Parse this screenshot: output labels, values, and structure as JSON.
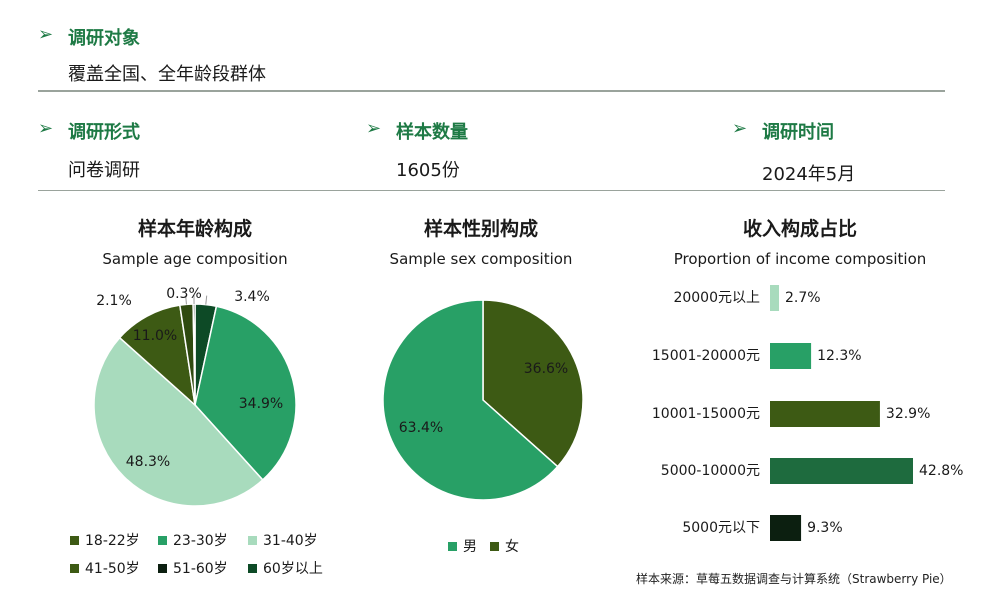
{
  "header": {
    "object_title": "调研对象",
    "object_value": "覆盖全国、全年龄段群体",
    "form_title": "调研形式",
    "form_value": "问卷调研",
    "sample_title": "样本数量",
    "sample_value": "1605份",
    "time_title": "调研时间",
    "time_value": "2024年5月",
    "arrow_glyph": "➢"
  },
  "colors": {
    "accent": "#1e7a45",
    "c1822": "#3d5a14",
    "c2330": "#28a066",
    "c3140": "#a8dbbd",
    "c4150": "#3d5a14",
    "c5160": "#0c1f10",
    "c60": "#0d4a26"
  },
  "chart_data": [
    {
      "type": "pie",
      "title": "样本年龄构成",
      "subtitle": "Sample age composition",
      "slices": [
        {
          "label": "60岁以上",
          "value": 3.4,
          "text": "3.4%",
          "color": "#0d4a26"
        },
        {
          "label": "23-30岁",
          "value": 34.9,
          "text": "34.9%",
          "color": "#28a066"
        },
        {
          "label": "31-40岁",
          "value": 48.3,
          "text": "48.3%",
          "color": "#a8dbbd"
        },
        {
          "label": "41-50岁",
          "value": 11.0,
          "text": "11.0%",
          "color": "#3d5a14"
        },
        {
          "label": "18-22岁",
          "value": 2.1,
          "text": "2.1%",
          "color": "#2f4a10"
        },
        {
          "label": "51-60岁",
          "value": 0.3,
          "text": "0.3%",
          "color": "#0c1f10"
        }
      ],
      "legend": [
        "18-22岁",
        "23-30岁",
        "31-40岁",
        "41-50岁",
        "51-60岁",
        "60岁以上"
      ]
    },
    {
      "type": "pie",
      "title": "样本性别构成",
      "subtitle": "Sample sex composition",
      "slices": [
        {
          "label": "女",
          "value": 36.6,
          "text": "36.6%",
          "color": "#3d5a14"
        },
        {
          "label": "男",
          "value": 63.4,
          "text": "63.4%",
          "color": "#28a066"
        }
      ],
      "legend": [
        "男",
        "女"
      ]
    },
    {
      "type": "bar",
      "orientation": "horizontal",
      "title": "收入构成占比",
      "subtitle": "Proportion of income composition",
      "categories": [
        "20000元以上",
        "15001-20000元",
        "10001-15000元",
        "5000-10000元",
        "5000元以下"
      ],
      "values": [
        2.7,
        12.3,
        32.9,
        42.8,
        9.3
      ],
      "value_labels": [
        "2.7%",
        "12.3%",
        "32.9%",
        "42.8%",
        "9.3%"
      ],
      "colors": [
        "#a8dbbd",
        "#28a066",
        "#3d5a14",
        "#1e6b3e",
        "#0c1f10"
      ]
    }
  ],
  "source": "样本来源：草莓五数据调查与计算系统（Strawberry Pie）"
}
